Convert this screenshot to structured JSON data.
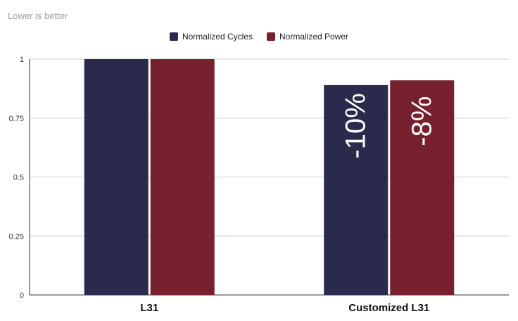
{
  "chart_data": {
    "type": "bar",
    "subtitle": "Lower is better",
    "categories": [
      "L31",
      "Customized L31"
    ],
    "series": [
      {
        "name": "Normalized Cycles",
        "color": "#2a2a4c",
        "values": [
          1.0,
          0.89
        ]
      },
      {
        "name": "Normalized Power",
        "color": "#77202e",
        "values": [
          1.0,
          0.91
        ]
      }
    ],
    "ylim": [
      0,
      1
    ],
    "yticks": [
      {
        "value": 0,
        "label": "0"
      },
      {
        "value": 0.25,
        "label": "0.25"
      },
      {
        "value": 0.5,
        "label": "0.5"
      },
      {
        "value": 0.75,
        "label": "0.75"
      },
      {
        "value": 1,
        "label": "1"
      }
    ],
    "annotations": [
      {
        "category": "Customized L31",
        "series": "Normalized Cycles",
        "text": "-10%"
      },
      {
        "category": "Customized L31",
        "series": "Normalized Power",
        "text": "-8%"
      }
    ],
    "grid": true,
    "legend": "top-center"
  }
}
